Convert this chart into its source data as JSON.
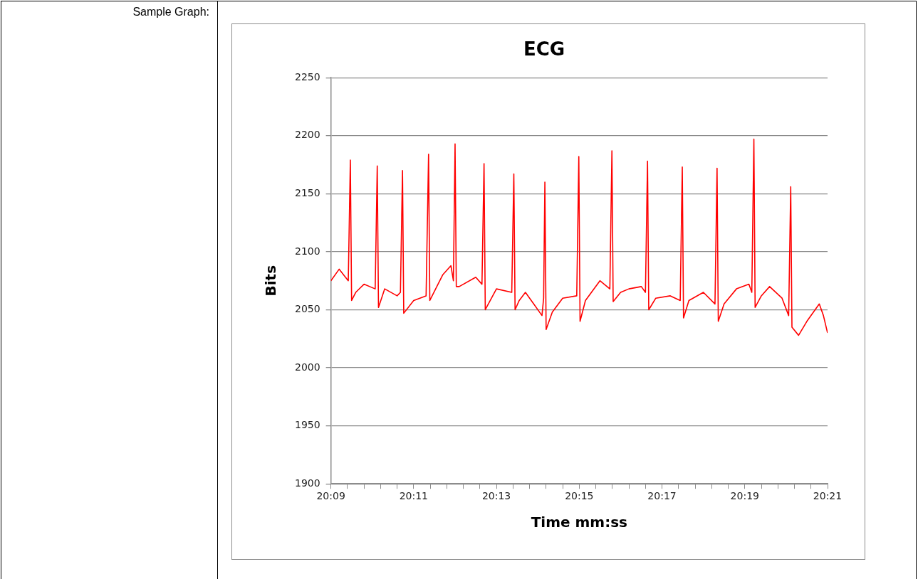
{
  "chart_data": {
    "type": "line",
    "title": "ECG",
    "xlabel": "Time mm:ss",
    "ylabel": "Bits",
    "annotations": [
      "Sample Graph:"
    ],
    "xlim": [
      1209,
      1221
    ],
    "ylim": [
      1900,
      2250
    ],
    "yticks": [
      1900,
      1950,
      2000,
      2050,
      2100,
      2150,
      2200,
      2250
    ],
    "xticks": [
      {
        "value": 1209,
        "label": "20:09"
      },
      {
        "value": 1209.4,
        "label": null
      },
      {
        "value": 1209.8,
        "label": null
      },
      {
        "value": 1210.2,
        "label": null
      },
      {
        "value": 1210.6,
        "label": null
      },
      {
        "value": 1211,
        "label": "20:11"
      },
      {
        "value": 1211.4,
        "label": null
      },
      {
        "value": 1211.8,
        "label": null
      },
      {
        "value": 1212.2,
        "label": null
      },
      {
        "value": 1212.6,
        "label": null
      },
      {
        "value": 1213,
        "label": "20:13"
      },
      {
        "value": 1213.4,
        "label": null
      },
      {
        "value": 1213.8,
        "label": null
      },
      {
        "value": 1214.2,
        "label": null
      },
      {
        "value": 1214.6,
        "label": null
      },
      {
        "value": 1215,
        "label": "20:15"
      },
      {
        "value": 1215.4,
        "label": null
      },
      {
        "value": 1215.8,
        "label": null
      },
      {
        "value": 1216.2,
        "label": null
      },
      {
        "value": 1216.6,
        "label": null
      },
      {
        "value": 1217,
        "label": "20:17"
      },
      {
        "value": 1217.4,
        "label": null
      },
      {
        "value": 1217.8,
        "label": null
      },
      {
        "value": 1218.2,
        "label": null
      },
      {
        "value": 1218.6,
        "label": null
      },
      {
        "value": 1219,
        "label": "20:19"
      },
      {
        "value": 1219.4,
        "label": null
      },
      {
        "value": 1219.8,
        "label": null
      },
      {
        "value": 1220.2,
        "label": null
      },
      {
        "value": 1220.6,
        "label": null
      },
      {
        "value": 1221,
        "label": "20:21"
      }
    ],
    "grid": "y",
    "legend": false,
    "marker": "none",
    "line_style": "solid",
    "series": [
      {
        "color": "#ff0000",
        "x": [
          1209,
          1209.2,
          1209.42,
          1209.47,
          1209.5,
          1209.6,
          1209.8,
          1210.07,
          1210.12,
          1210.15,
          1210.3,
          1210.6,
          1210.68,
          1210.73,
          1210.76,
          1211.0,
          1211.3,
          1211.36,
          1211.39,
          1211.7,
          1211.9,
          1211.96,
          1212.0,
          1212.03,
          1212.1,
          1212.5,
          1212.65,
          1212.7,
          1212.73,
          1213.0,
          1213.37,
          1213.42,
          1213.45,
          1213.55,
          1213.7,
          1213.9,
          1214.1,
          1214.14,
          1214.17,
          1214.2,
          1214.35,
          1214.6,
          1214.94,
          1214.99,
          1215.02,
          1215.15,
          1215.5,
          1215.74,
          1215.79,
          1215.82,
          1216.0,
          1216.2,
          1216.5,
          1216.6,
          1216.65,
          1216.68,
          1216.85,
          1217.2,
          1217.44,
          1217.49,
          1217.52,
          1217.65,
          1218.0,
          1218.28,
          1218.33,
          1218.36,
          1218.5,
          1218.8,
          1219.1,
          1219.17,
          1219.22,
          1219.25,
          1219.4,
          1219.6,
          1219.9,
          1220.06,
          1220.11,
          1220.14,
          1220.3,
          1220.5,
          1220.8,
          1220.9,
          1221
        ],
        "values": [
          2075,
          2085,
          2075,
          2179,
          2058,
          2065,
          2072,
          2068,
          2174,
          2052,
          2068,
          2062,
          2065,
          2170,
          2047,
          2058,
          2062,
          2184,
          2058,
          2080,
          2088,
          2075,
          2193,
          2070,
          2070,
          2078,
          2072,
          2176,
          2050,
          2068,
          2065,
          2167,
          2050,
          2058,
          2065,
          2055,
          2045,
          2060,
          2160,
          2033,
          2048,
          2060,
          2062,
          2182,
          2040,
          2058,
          2075,
          2068,
          2187,
          2057,
          2065,
          2068,
          2070,
          2065,
          2178,
          2050,
          2060,
          2062,
          2058,
          2173,
          2043,
          2058,
          2065,
          2055,
          2172,
          2040,
          2055,
          2068,
          2072,
          2065,
          2197,
          2052,
          2062,
          2070,
          2060,
          2045,
          2156,
          2035,
          2028,
          2040,
          2055,
          2045,
          2030
        ]
      }
    ]
  }
}
